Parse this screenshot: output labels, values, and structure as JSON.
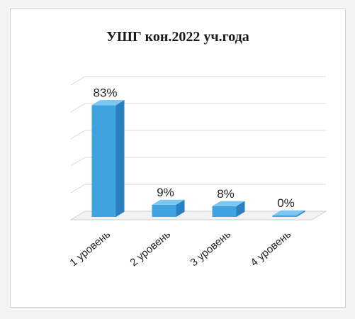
{
  "chart_data": {
    "type": "bar",
    "title": "УШГ кон.2022 уч.года",
    "categories": [
      "1 уровень",
      "2 уровень",
      "3 уровень",
      "4 уровень"
    ],
    "values": [
      83,
      9,
      8,
      0
    ],
    "data_labels": [
      "83%",
      "9%",
      "8%",
      "0%"
    ],
    "ylim": [
      0,
      100
    ],
    "grid": true,
    "legend": "none",
    "color": "#3fa3e0",
    "style": "3d-column"
  }
}
